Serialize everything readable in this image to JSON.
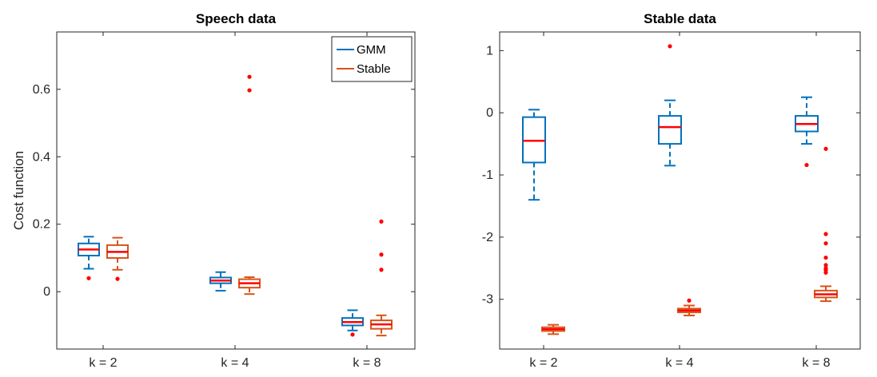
{
  "chart_data": [
    {
      "type": "box",
      "title": "Speech data",
      "xlabel": "",
      "ylabel": "Cost function",
      "categories": [
        "k = 2",
        "k = 4",
        "k = 8"
      ],
      "ylim": [
        -0.17,
        0.77
      ],
      "yticks": [
        0,
        0.2,
        0.4,
        0.6
      ],
      "ytick_labels": [
        "0",
        "0.2",
        "0.4",
        "0.6"
      ],
      "grid": false,
      "legend": {
        "position": "top-right",
        "entries": [
          "GMM",
          "Stable"
        ]
      },
      "series": [
        {
          "name": "GMM",
          "color": "#0072BD",
          "boxes": [
            {
              "whisker_low": 0.068,
              "q1": 0.107,
              "median": 0.125,
              "q3": 0.143,
              "whisker_high": 0.163,
              "outliers": [
                0.04
              ]
            },
            {
              "whisker_low": 0.003,
              "q1": 0.025,
              "median": 0.033,
              "q3": 0.042,
              "whisker_high": 0.058,
              "outliers": []
            },
            {
              "whisker_low": -0.115,
              "q1": -0.1,
              "median": -0.09,
              "q3": -0.078,
              "whisker_high": -0.055,
              "outliers": [
                -0.127
              ]
            }
          ]
        },
        {
          "name": "Stable",
          "color": "#D95319",
          "boxes": [
            {
              "whisker_low": 0.065,
              "q1": 0.1,
              "median": 0.118,
              "q3": 0.138,
              "whisker_high": 0.16,
              "outliers": [
                0.038
              ]
            },
            {
              "whisker_low": -0.007,
              "q1": 0.012,
              "median": 0.025,
              "q3": 0.037,
              "whisker_high": 0.043,
              "outliers": [
                0.597,
                0.637
              ]
            },
            {
              "whisker_low": -0.13,
              "q1": -0.11,
              "median": -0.097,
              "q3": -0.085,
              "whisker_high": -0.07,
              "outliers": [
                0.065,
                0.11,
                0.208
              ]
            }
          ]
        }
      ]
    },
    {
      "type": "box",
      "title": "Stable data",
      "xlabel": "",
      "ylabel": "",
      "categories": [
        "k = 2",
        "k = 4",
        "k = 8"
      ],
      "ylim": [
        -3.8,
        1.3
      ],
      "yticks": [
        -3,
        -2,
        -1,
        0,
        1
      ],
      "ytick_labels": [
        "-3",
        "-2",
        "-1",
        "0",
        "1"
      ],
      "grid": false,
      "series": [
        {
          "name": "GMM",
          "color": "#0072BD",
          "boxes": [
            {
              "whisker_low": -1.4,
              "q1": -0.8,
              "median": -0.45,
              "q3": -0.07,
              "whisker_high": 0.05,
              "outliers": []
            },
            {
              "whisker_low": -0.85,
              "q1": -0.5,
              "median": -0.23,
              "q3": -0.05,
              "whisker_high": 0.2,
              "outliers": [
                1.07
              ]
            },
            {
              "whisker_low": -0.5,
              "q1": -0.3,
              "median": -0.18,
              "q3": -0.05,
              "whisker_high": 0.25,
              "outliers": [
                -0.84
              ]
            }
          ]
        },
        {
          "name": "Stable",
          "color": "#D95319",
          "boxes": [
            {
              "whisker_low": -3.56,
              "q1": -3.51,
              "median": -3.48,
              "q3": -3.45,
              "whisker_high": -3.41,
              "outliers": []
            },
            {
              "whisker_low": -3.26,
              "q1": -3.21,
              "median": -3.18,
              "q3": -3.15,
              "whisker_high": -3.1,
              "outliers": [
                -3.02
              ]
            },
            {
              "whisker_low": -3.03,
              "q1": -2.97,
              "median": -2.92,
              "q3": -2.86,
              "whisker_high": -2.79,
              "outliers": [
                -0.58,
                -1.95,
                -2.1,
                -2.33,
                -2.45,
                -2.5,
                -2.53,
                -2.57
              ]
            }
          ]
        }
      ]
    }
  ],
  "median_color": "#FF0000",
  "outlier_color": "#FF0000"
}
